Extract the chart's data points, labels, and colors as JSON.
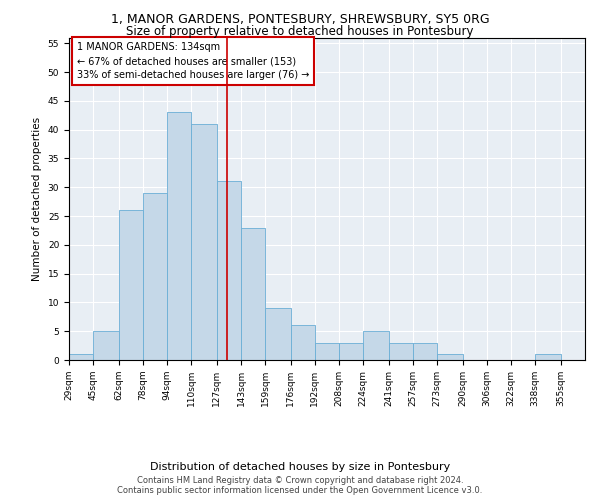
{
  "title": "1, MANOR GARDENS, PONTESBURY, SHREWSBURY, SY5 0RG",
  "subtitle": "Size of property relative to detached houses in Pontesbury",
  "xlabel": "Distribution of detached houses by size in Pontesbury",
  "ylabel": "Number of detached properties",
  "categories": [
    "29sqm",
    "45sqm",
    "62sqm",
    "78sqm",
    "94sqm",
    "110sqm",
    "127sqm",
    "143sqm",
    "159sqm",
    "176sqm",
    "192sqm",
    "208sqm",
    "224sqm",
    "241sqm",
    "257sqm",
    "273sqm",
    "290sqm",
    "306sqm",
    "322sqm",
    "338sqm",
    "355sqm"
  ],
  "values": [
    1,
    5,
    26,
    29,
    43,
    41,
    31,
    23,
    9,
    6,
    3,
    3,
    5,
    3,
    3,
    1,
    0,
    0,
    0,
    1,
    0
  ],
  "bar_color": "#c5d8e8",
  "bar_edge_color": "#6aaed6",
  "property_line_x": 134,
  "bin_edges": [
    29,
    45,
    62,
    78,
    94,
    110,
    127,
    143,
    159,
    176,
    192,
    208,
    224,
    241,
    257,
    273,
    290,
    306,
    322,
    338,
    355,
    371
  ],
  "annotation_title": "1 MANOR GARDENS: 134sqm",
  "annotation_line1": "← 67% of detached houses are smaller (153)",
  "annotation_line2": "33% of semi-detached houses are larger (76) →",
  "annotation_box_color": "#ffffff",
  "annotation_box_edge_color": "#cc0000",
  "vline_color": "#cc0000",
  "ylim": [
    0,
    56
  ],
  "yticks": [
    0,
    5,
    10,
    15,
    20,
    25,
    30,
    35,
    40,
    45,
    50,
    55
  ],
  "background_color": "#e8eef4",
  "footer_line1": "Contains HM Land Registry data © Crown copyright and database right 2024.",
  "footer_line2": "Contains public sector information licensed under the Open Government Licence v3.0.",
  "title_fontsize": 9,
  "subtitle_fontsize": 8.5,
  "xlabel_fontsize": 8,
  "ylabel_fontsize": 7.5,
  "tick_fontsize": 6.5,
  "annotation_fontsize": 7,
  "footer_fontsize": 6
}
